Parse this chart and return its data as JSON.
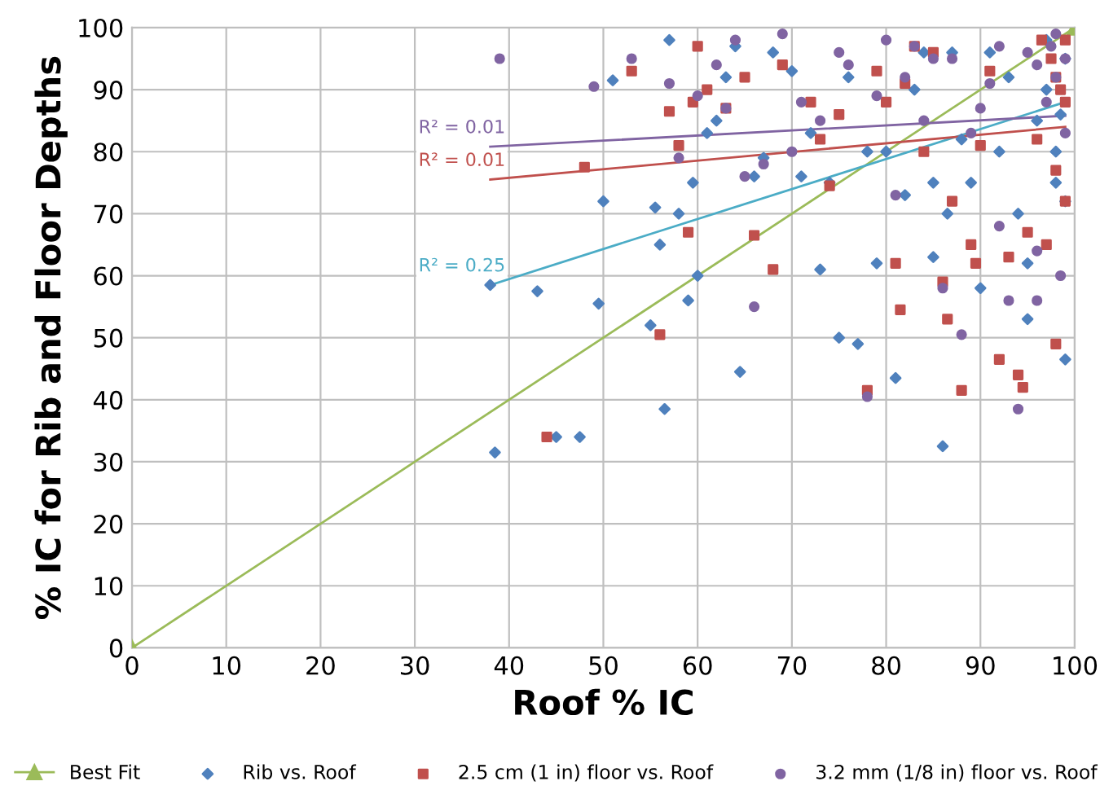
{
  "chart_data": {
    "type": "scatter",
    "xlabel": "Roof % IC",
    "ylabel": "% IC for Rib and Floor Depths",
    "xlim": [
      0,
      100
    ],
    "ylim": [
      0,
      100
    ],
    "xticks": [
      0,
      10,
      20,
      30,
      40,
      50,
      60,
      70,
      80,
      90,
      100
    ],
    "yticks": [
      0,
      10,
      20,
      30,
      40,
      50,
      60,
      70,
      80,
      90,
      100
    ],
    "grid": true,
    "legend": "bottom",
    "series": [
      {
        "name": "Best Fit",
        "type": "line",
        "color": "#9bbb59",
        "marker": "triangle",
        "x": [
          0,
          100
        ],
        "values": [
          0,
          100
        ]
      },
      {
        "name": "Rib vs. Roof",
        "color": "#4f81bd",
        "marker": "diamond",
        "x": [
          38,
          38.5,
          43,
          45,
          47.5,
          49.5,
          50,
          51,
          55,
          55.5,
          56,
          56.5,
          57,
          58,
          59,
          59.5,
          60,
          61,
          62,
          63,
          64,
          64.5,
          66,
          67,
          68,
          70,
          71,
          72,
          73,
          74,
          75,
          76,
          77,
          78,
          79,
          80,
          81,
          82,
          83,
          84,
          85,
          85,
          86,
          86.5,
          87,
          88,
          89,
          90,
          91,
          92,
          93,
          94,
          95,
          95,
          96,
          97,
          97,
          98,
          98,
          98.5,
          99,
          99,
          99
        ],
        "values": [
          58.5,
          31.5,
          57.5,
          34,
          34,
          55.5,
          72,
          91.5,
          52,
          71,
          65,
          38.5,
          98,
          70,
          56,
          75,
          60,
          83,
          85,
          92,
          97,
          44.5,
          76,
          79,
          96,
          93,
          76,
          83,
          61,
          75,
          50,
          92,
          49,
          80,
          62,
          80,
          43.5,
          73,
          90,
          96,
          63,
          75,
          32.5,
          70,
          96,
          82,
          75,
          58,
          96,
          80,
          92,
          70,
          53,
          62,
          85,
          90,
          98,
          75,
          80,
          86,
          46.5,
          95,
          72
        ]
      },
      {
        "name": "2.5 cm (1 in) floor vs. Roof",
        "color": "#c0504d",
        "marker": "square",
        "x": [
          44,
          48,
          53,
          56,
          57,
          58,
          59,
          59.5,
          60,
          61,
          63,
          65,
          66,
          68,
          69,
          72,
          73,
          74,
          75,
          78,
          79,
          80,
          81,
          81.5,
          82,
          83,
          84,
          85,
          86,
          86.5,
          87,
          88,
          89,
          89.5,
          90,
          91,
          92,
          93,
          94,
          94.5,
          95,
          96,
          96.5,
          97,
          97.5,
          98,
          98,
          98.5,
          99,
          99,
          99,
          98
        ],
        "values": [
          34,
          77.5,
          93,
          50.5,
          86.5,
          81,
          67,
          88,
          97,
          90,
          87,
          92,
          66.5,
          61,
          94,
          88,
          82,
          74.5,
          86,
          41.5,
          93,
          88,
          62,
          54.5,
          91,
          97,
          80,
          96,
          59,
          53,
          72,
          41.5,
          65,
          62,
          81,
          93,
          46.5,
          63,
          44,
          42,
          67,
          82,
          98,
          65,
          95,
          92,
          49,
          90,
          88,
          72,
          98,
          77
        ]
      },
      {
        "name": "3.2 mm (1/8 in) floor vs. Roof",
        "color": "#8064a2",
        "marker": "circle",
        "x": [
          39,
          49,
          53,
          57,
          58,
          60,
          62,
          63,
          64,
          65,
          66,
          67,
          69,
          70,
          71,
          73,
          75,
          76,
          78,
          79,
          80,
          81,
          82,
          83,
          84,
          85,
          86,
          87,
          88,
          89,
          90,
          91,
          92,
          93,
          94,
          95,
          96,
          96,
          97,
          97.5,
          98,
          98,
          98.5,
          99,
          99,
          96,
          92
        ],
        "values": [
          95,
          90.5,
          95,
          91,
          79,
          89,
          94,
          87,
          98,
          76,
          55,
          78,
          99,
          80,
          88,
          85,
          96,
          94,
          40.5,
          89,
          98,
          73,
          92,
          97,
          85,
          95,
          58,
          95,
          50.5,
          83,
          87,
          91,
          68,
          56,
          38.5,
          96,
          94,
          64,
          88,
          97,
          99,
          92,
          60,
          83,
          95,
          56,
          97
        ]
      },
      {
        "type": "line",
        "color": "#4bacc6",
        "marker": "none",
        "x": [
          38,
          99
        ],
        "values": [
          58.5,
          88
        ]
      },
      {
        "type": "line",
        "color": "#c0504d",
        "marker": "none",
        "x": [
          38,
          99
        ],
        "values": [
          75.5,
          84
        ]
      },
      {
        "type": "line",
        "color": "#8064a2",
        "marker": "none",
        "x": [
          38,
          99
        ],
        "values": [
          80.8,
          85.8
        ]
      }
    ],
    "annotations": [
      "R² = 0.01",
      "R² = 0.01",
      "R² = 0.25"
    ]
  }
}
